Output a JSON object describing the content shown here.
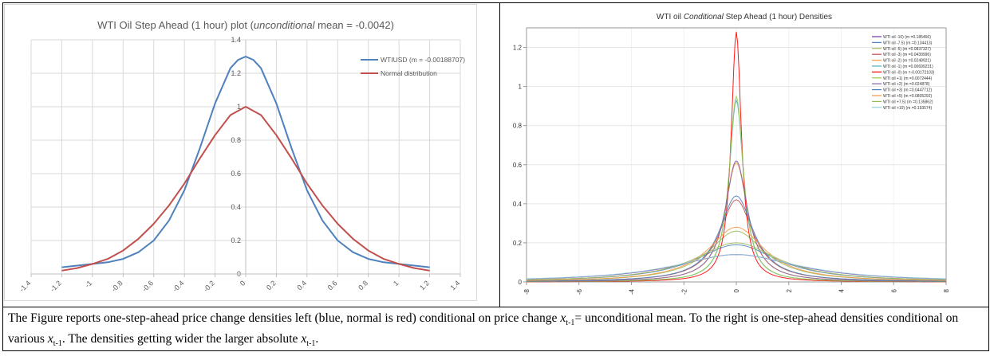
{
  "chart_data": [
    {
      "type": "line",
      "title_parts": [
        "WTI Oil Step Ahead (1 hour) plot (",
        "unconditional",
        " mean = -0.0042)"
      ],
      "xlim": [
        -1.4,
        1.4
      ],
      "ylim": [
        0,
        1.4
      ],
      "x_ticks": [
        "-1.4",
        "-1.2",
        "-1",
        "-0.8",
        "-0.6",
        "-0.4",
        "-0.2",
        "0",
        "0.2",
        "0.4",
        "0.6",
        "0.8",
        "1",
        "1.2",
        "1.4"
      ],
      "y_ticks": [
        "0",
        "0.2",
        "0.4",
        "0.6",
        "0.8",
        "1",
        "1.2",
        "1.4"
      ],
      "grid": true,
      "legend_position": "top-right",
      "series": [
        {
          "name": "WTIUSD (m = -0.00188707)",
          "color": "#4f81bd",
          "x": [
            -1.2,
            -1.1,
            -1.0,
            -0.9,
            -0.8,
            -0.7,
            -0.6,
            -0.5,
            -0.4,
            -0.3,
            -0.2,
            -0.1,
            -0.05,
            0,
            0.05,
            0.1,
            0.2,
            0.3,
            0.4,
            0.5,
            0.6,
            0.7,
            0.8,
            0.9,
            1.0,
            1.1,
            1.2
          ],
          "y": [
            0.04,
            0.05,
            0.06,
            0.07,
            0.09,
            0.13,
            0.2,
            0.32,
            0.5,
            0.75,
            1.02,
            1.23,
            1.28,
            1.3,
            1.28,
            1.23,
            1.02,
            0.75,
            0.5,
            0.32,
            0.2,
            0.13,
            0.09,
            0.07,
            0.06,
            0.05,
            0.04
          ]
        },
        {
          "name": "Normal distribution",
          "color": "#c0504d",
          "x": [
            -1.2,
            -1.1,
            -1.0,
            -0.9,
            -0.8,
            -0.7,
            -0.6,
            -0.5,
            -0.4,
            -0.3,
            -0.2,
            -0.1,
            0,
            0.1,
            0.2,
            0.3,
            0.4,
            0.5,
            0.6,
            0.7,
            0.8,
            0.9,
            1.0,
            1.1,
            1.2
          ],
          "y": [
            0.02,
            0.035,
            0.06,
            0.09,
            0.14,
            0.21,
            0.3,
            0.41,
            0.54,
            0.69,
            0.83,
            0.95,
            1.0,
            0.95,
            0.83,
            0.69,
            0.54,
            0.41,
            0.3,
            0.21,
            0.14,
            0.09,
            0.06,
            0.035,
            0.02
          ]
        }
      ]
    },
    {
      "type": "line",
      "title_parts": [
        "WTI oil ",
        "Conditional",
        " Step Ahead (1 hour) Densities"
      ],
      "xlim": [
        -8,
        8
      ],
      "ylim": [
        0,
        1.3
      ],
      "x_ticks": [
        "-8",
        "-6",
        "-4",
        "-2",
        "0",
        "2",
        "4",
        "6",
        "8"
      ],
      "y_ticks": [
        "0",
        "0.2",
        "0.4",
        "0.6",
        "0.8",
        "1",
        "1.2"
      ],
      "grid": true,
      "legend_position": "top-right",
      "series": [
        {
          "name": "WTI oil -10) (m =0.185466)",
          "color": "#7030a0",
          "peak": 0.14,
          "width": 3.2
        },
        {
          "name": "WTI oil -7.5) (m =0.134413)",
          "color": "#4f81bd",
          "peak": 0.19,
          "width": 2.2
        },
        {
          "name": "WTI oil -5) (m =0.0837327)",
          "color": "#9bbb59",
          "peak": 0.26,
          "width": 1.5
        },
        {
          "name": "WTI oil -3) (m =0.0439996)",
          "color": "#c0504d",
          "peak": 0.42,
          "width": 0.9
        },
        {
          "name": "WTI oil -2) (m =0.0248921)",
          "color": "#f79646",
          "peak": 0.61,
          "width": 0.6
        },
        {
          "name": "WTI oil -1) (m =0.00699231)",
          "color": "#4bacc6",
          "peak": 0.93,
          "width": 0.38
        },
        {
          "name": "WTI oil -0) (m =-0.00172103)",
          "color": "#ff0000",
          "peak": 1.28,
          "width": 0.27
        },
        {
          "name": "WTI oil +1) (m =0.0072444)",
          "color": "#92d050",
          "peak": 0.95,
          "width": 0.38
        },
        {
          "name": "WTI oil +2) (m =0.024878)",
          "color": "#8064a2",
          "peak": 0.62,
          "width": 0.6
        },
        {
          "name": "WTI oil +3) (m =0.0447712)",
          "color": "#4f81bd",
          "peak": 0.44,
          "width": 0.9
        },
        {
          "name": "WTI oil +5) (m =0.0805292)",
          "color": "#f79646",
          "peak": 0.28,
          "width": 1.5
        },
        {
          "name": "WTI oil +7.5) (m =0.135862)",
          "color": "#9bbb59",
          "peak": 0.2,
          "width": 2.2
        },
        {
          "name": "WTI oil +10) (m =0.193574)",
          "color": "#93cddd",
          "peak": 0.14,
          "width": 3.3
        }
      ]
    }
  ],
  "caption": {
    "line1_a": "The Figure reports one-step-ahead price change densities left (blue, normal is red) conditional on price change ",
    "var": "x",
    "sub": "t-1",
    "line1_b": "= unconditional mean. To the right is",
    "line2_a": "one-step-ahead densities conditional on various ",
    "line2_b": ". The densities getting wider the larger absolute ",
    "line2_c": "."
  }
}
